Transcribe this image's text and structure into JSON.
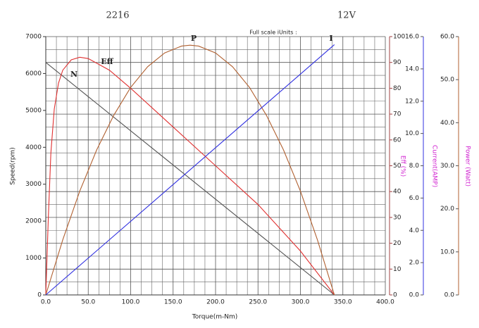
{
  "chart_data": {
    "type": "line",
    "title": "2216",
    "subtitle": "12V",
    "annotation": "Full scale iUnits :",
    "x_label": "Torque(m-Nm)",
    "y_label": "Speed(rpm)",
    "y2_label": "Eff (%)",
    "y3_label": "Current(AMP)",
    "y4_label": "Power (Watt)",
    "xlim": [
      0,
      400
    ],
    "xticks": [
      {
        "value": 0,
        "label": "0.0"
      },
      {
        "value": 50,
        "label": "50.0"
      },
      {
        "value": 100,
        "label": "100.0"
      },
      {
        "value": 150,
        "label": "150.0"
      },
      {
        "value": 200,
        "label": "200.0"
      },
      {
        "value": 250,
        "label": "250.0"
      },
      {
        "value": 300,
        "label": "300.0"
      },
      {
        "value": 350,
        "label": "350.0"
      },
      {
        "value": 400,
        "label": "400.0"
      }
    ],
    "ylim": [
      0,
      7000
    ],
    "yticks": [
      0,
      1000,
      2000,
      3000,
      4000,
      5000,
      6000,
      7000
    ],
    "y2lim": [
      0,
      100
    ],
    "y2ticks": [
      0,
      10,
      20,
      30,
      40,
      50,
      60,
      70,
      80,
      90,
      100
    ],
    "y3lim": [
      0,
      16
    ],
    "y3ticks": [
      {
        "value": 0,
        "label": "0.0"
      },
      {
        "value": 2,
        "label": "2.0"
      },
      {
        "value": 4,
        "label": "4.0"
      },
      {
        "value": 6,
        "label": "6.0"
      },
      {
        "value": 8,
        "label": "8.0"
      },
      {
        "value": 10,
        "label": "10.0"
      },
      {
        "value": 12,
        "label": "12.0"
      },
      {
        "value": 14,
        "label": "14.0"
      },
      {
        "value": 16,
        "label": "16.0"
      }
    ],
    "y4lim": [
      0,
      60
    ],
    "y4ticks": [
      {
        "value": 0,
        "label": "0.0"
      },
      {
        "value": 10,
        "label": "10.0"
      },
      {
        "value": 20,
        "label": "20.0"
      },
      {
        "value": 30,
        "label": "30.0"
      },
      {
        "value": 40,
        "label": "40.0"
      },
      {
        "value": 50,
        "label": "50.0"
      },
      {
        "value": 60,
        "label": "60.0"
      }
    ],
    "grid": true,
    "series": [
      {
        "name": "N",
        "color": "#555555",
        "axis": "y",
        "x": [
          0,
          340
        ],
        "values": [
          6300,
          0
        ]
      },
      {
        "name": "Eff",
        "color": "#e03030",
        "axis": "y2",
        "x": [
          0,
          3,
          6,
          10,
          15,
          20,
          30,
          40,
          50,
          75,
          100,
          150,
          200,
          250,
          300,
          340
        ],
        "values": [
          0,
          30,
          55,
          72,
          82,
          87,
          91,
          92,
          91.5,
          87,
          80,
          65,
          50,
          35,
          17,
          0
        ]
      },
      {
        "name": "P",
        "color": "#b06030",
        "axis": "y4",
        "x": [
          0,
          20,
          40,
          60,
          80,
          100,
          120,
          140,
          160,
          170,
          180,
          200,
          220,
          240,
          260,
          280,
          300,
          320,
          340
        ],
        "values": [
          0,
          12.8,
          24.1,
          33.7,
          41.7,
          48.2,
          53.0,
          56.2,
          57.8,
          58.0,
          57.8,
          56.2,
          53.0,
          48.2,
          41.7,
          33.7,
          24.1,
          12.8,
          0
        ]
      },
      {
        "name": "I",
        "color": "#3030e0",
        "axis": "y3",
        "x": [
          0,
          340
        ],
        "values": [
          0,
          15.5
        ]
      }
    ]
  }
}
